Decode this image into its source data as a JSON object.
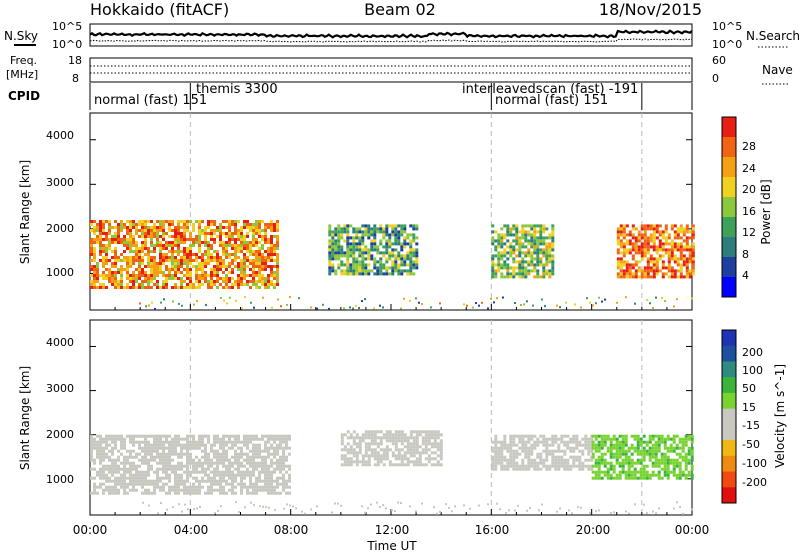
{
  "header": {
    "station": "Hokkaido (fitACF)",
    "beam": "Beam 02",
    "date": "18/Nov/2015"
  },
  "side_labels": {
    "nsky": "N.Sky",
    "nsearch": "N.Search",
    "freq": "Freq.",
    "freq_unit": "[MHz]",
    "nave": "Nave",
    "cpid": "CPID"
  },
  "time_axis": {
    "label": "Time UT",
    "ticks": [
      "00:00",
      "04:00",
      "08:00",
      "12:00",
      "16:00",
      "20:00",
      "00:00"
    ]
  },
  "noise_panel": {
    "left_ticks": [
      "10^5",
      "10^0"
    ],
    "right_ticks": [
      "10^5",
      "10^0"
    ]
  },
  "freq_panel": {
    "left_ticks": [
      "18",
      "8"
    ],
    "right_ticks": [
      "60",
      "0"
    ]
  },
  "cpid_segments": [
    {
      "label": "normal (fast) 151",
      "start_hour": 0.0
    },
    {
      "label": "themis 3300",
      "start_hour": 4.0
    },
    {
      "label": "interleavedscan (fast) -191",
      "start_hour": 16.0
    },
    {
      "label": "normal (fast) 151",
      "start_hour": 16.0
    }
  ],
  "colors": {
    "power_scale": [
      "#0000ff",
      "#1e3fa0",
      "#2e7d7d",
      "#3fa05a",
      "#8cc83c",
      "#f0d020",
      "#f5a014",
      "#f06414",
      "#e61e14"
    ],
    "velocity_scale": [
      "#e01010",
      "#f04a10",
      "#f08a10",
      "#f0b814",
      "#c8c8c0",
      "#c8c8c0",
      "#78d232",
      "#3cb43c",
      "#2d8c7d",
      "#1e50a0",
      "#1e32b4"
    ]
  },
  "chart_data": [
    {
      "type": "heatmap",
      "title": "",
      "xlabel": "Time UT",
      "ylabel": "Slant Range [km]",
      "colorbar_label": "Power [dB]",
      "colorbar_ticks": [
        "28",
        "24",
        "20",
        "16",
        "12",
        "8",
        "4"
      ],
      "colorbar_range": [
        0,
        30
      ],
      "x_range_hours": [
        0,
        24
      ],
      "ylim": [
        180,
        4600
      ],
      "y_ticks": [
        "4000",
        "3000",
        "2000",
        "1000"
      ],
      "regions": [
        {
          "t": [
            0.0,
            7.5
          ],
          "r": [
            700,
            2200
          ],
          "level": 22
        },
        {
          "t": [
            9.5,
            13.0
          ],
          "r": [
            1000,
            2100
          ],
          "level": 12
        },
        {
          "t": [
            16.0,
            18.5
          ],
          "r": [
            900,
            2100
          ],
          "level": 14
        },
        {
          "t": [
            21.0,
            24.0
          ],
          "r": [
            900,
            2100
          ],
          "level": 24
        }
      ]
    },
    {
      "type": "heatmap",
      "title": "",
      "xlabel": "Time UT",
      "ylabel": "Slant Range [km]",
      "colorbar_label": "Velocity [m s^-1]",
      "colorbar_ticks": [
        "200",
        "100",
        "50",
        "15",
        "-15",
        "-50",
        "-100",
        "-200"
      ],
      "colorbar_range": [
        -250,
        250
      ],
      "x_range_hours": [
        0,
        24
      ],
      "ylim": [
        180,
        4600
      ],
      "y_ticks": [
        "4000",
        "3000",
        "2000",
        "1000"
      ],
      "regions": [
        {
          "t": [
            0.0,
            8.0
          ],
          "r": [
            700,
            2000
          ],
          "level": 0
        },
        {
          "t": [
            10.0,
            14.0
          ],
          "r": [
            1300,
            2100
          ],
          "level": -50
        },
        {
          "t": [
            16.0,
            20.0
          ],
          "r": [
            1200,
            2000
          ],
          "level": -50
        },
        {
          "t": [
            20.0,
            24.0
          ],
          "r": [
            1000,
            2000
          ],
          "level": 60
        }
      ]
    }
  ]
}
